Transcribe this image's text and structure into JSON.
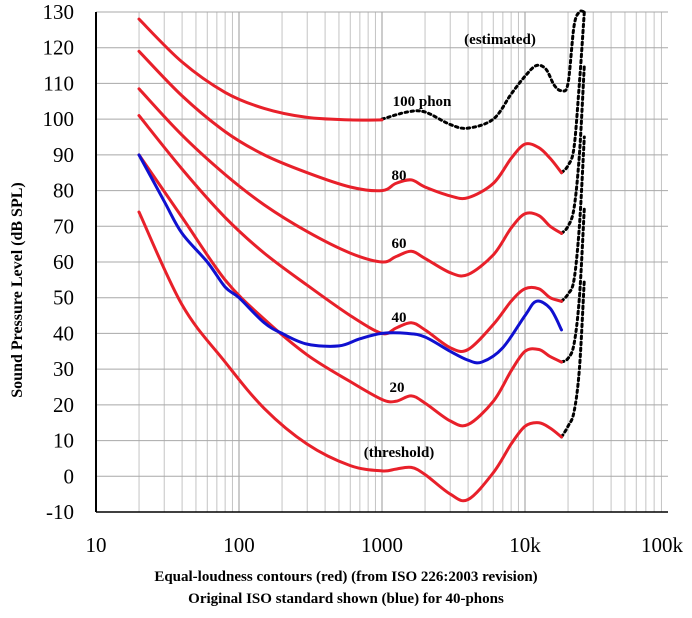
{
  "chart_data": {
    "type": "line",
    "xscale": "log",
    "xlim": [
      10,
      100000
    ],
    "ylim": [
      -10,
      130
    ],
    "grid": true,
    "x_ticks": [
      10,
      100,
      1000,
      10000,
      100000
    ],
    "x_tick_labels": [
      "10",
      "100",
      "1000",
      "10k",
      "100k"
    ],
    "y_ticks": [
      -10,
      0,
      10,
      20,
      30,
      40,
      50,
      60,
      70,
      80,
      90,
      100,
      110,
      120,
      130
    ],
    "y_tick_labels": [
      "-10",
      "0",
      "10",
      "20",
      "30",
      "40",
      "50",
      "60",
      "70",
      "80",
      "90",
      "100",
      "110",
      "120",
      "130"
    ],
    "ylabel": "Sound Pressure Level (dB SPL)",
    "caption_line1": "Equal-loudness contours (red) (from ISO 226:2003 revision)",
    "caption_line2": "Original ISO standard shown (blue) for 40-phons",
    "annotations": {
      "estimated": "(estimated)",
      "p100": "100 phon",
      "p80": "80",
      "p60": "60",
      "p40": "40",
      "p20": "20",
      "threshold": "(threshold)"
    },
    "colors": {
      "iso2003": "#e8202a",
      "original": "#1010d0",
      "estimated": "#000000"
    },
    "series": [
      {
        "group": "iso2003",
        "x": [
          20,
          40,
          80,
          150,
          300,
          600,
          1000
        ],
        "y": [
          128,
          116,
          107.5,
          103,
          100.5,
          99.8,
          99.8
        ]
      },
      {
        "group": "estimated",
        "x": [
          1000,
          1500,
          2000,
          3000,
          4000,
          6000,
          8000,
          10000,
          12000,
          14000,
          16000,
          18000,
          20000,
          22000,
          24000,
          26000
        ],
        "y": [
          100,
          102,
          102,
          98.5,
          97.5,
          100,
          107,
          112,
          115,
          114,
          109.5,
          108,
          110,
          126,
          132,
          132
        ]
      },
      {
        "group": "iso2003",
        "x": [
          20,
          40,
          80,
          150,
          300,
          600,
          1000,
          1250,
          1600,
          2000,
          3000,
          4000,
          6000,
          8000,
          10000,
          12500,
          15000,
          18000
        ],
        "y": [
          119,
          106.5,
          96.5,
          90,
          85,
          81,
          80,
          82,
          83,
          81,
          78.5,
          78,
          82,
          89,
          93,
          92,
          89,
          85
        ]
      },
      {
        "group": "iso2003",
        "x": [
          20,
          40,
          80,
          150,
          300,
          600,
          1000,
          1250,
          1600,
          2000,
          3000,
          4000,
          6000,
          8000,
          10000,
          12500,
          15000,
          18000
        ],
        "y": [
          108.5,
          95.5,
          84.5,
          76,
          68.5,
          62.5,
          60,
          61.5,
          63,
          61,
          57,
          56.5,
          62,
          69.5,
          73.5,
          73,
          70,
          68
        ]
      },
      {
        "group": "iso2003",
        "x": [
          20,
          40,
          80,
          150,
          300,
          600,
          1000,
          1250,
          1600,
          2000,
          3000,
          4000,
          6000,
          8000,
          10000,
          12500,
          15000,
          18000
        ],
        "y": [
          101,
          86,
          72.5,
          62.5,
          53.5,
          45,
          40,
          41.5,
          43,
          41,
          36,
          35.5,
          42.5,
          49,
          52.5,
          52.5,
          50,
          49
        ]
      },
      {
        "group": "iso2003",
        "x": [
          20,
          40,
          80,
          150,
          300,
          600,
          1000,
          1250,
          1600,
          2000,
          3000,
          4000,
          6000,
          8000,
          10000,
          12500,
          15000,
          18000
        ],
        "y": [
          90,
          72.5,
          55,
          44,
          34,
          26.5,
          21.5,
          21,
          22.5,
          20.5,
          15.5,
          14.5,
          21,
          29.5,
          35,
          35.5,
          33.5,
          32
        ]
      },
      {
        "group": "iso2003",
        "x": [
          20,
          40,
          80,
          150,
          300,
          600,
          1000,
          1250,
          1600,
          2000,
          3000,
          4000,
          6000,
          8000,
          10000,
          12500,
          15000,
          18000
        ],
        "y": [
          74,
          48,
          32,
          19,
          9,
          3,
          1.5,
          2,
          2.5,
          0.5,
          -5,
          -6.5,
          1,
          9,
          14,
          15,
          13.5,
          11
        ]
      },
      {
        "group": "estimated",
        "x": [
          18000,
          20000,
          22000,
          24000,
          26000
        ],
        "y": [
          11,
          14,
          18,
          30,
          55
        ]
      },
      {
        "group": "estimated",
        "x": [
          18000,
          20000,
          22000,
          24000,
          26000
        ],
        "y": [
          32,
          33,
          37,
          50,
          75
        ]
      },
      {
        "group": "estimated",
        "x": [
          18000,
          20000,
          22000,
          24000,
          26000
        ],
        "y": [
          49,
          51,
          55,
          70,
          95
        ]
      },
      {
        "group": "estimated",
        "x": [
          18000,
          20000,
          22000,
          24000,
          26000
        ],
        "y": [
          68,
          70,
          75,
          90,
          115
        ]
      },
      {
        "group": "estimated",
        "x": [
          18000,
          20000,
          22000,
          24000,
          26000
        ],
        "y": [
          85,
          87,
          92,
          110,
          132
        ]
      },
      {
        "group": "original",
        "x": [
          20,
          30,
          40,
          60,
          80,
          100,
          150,
          200,
          300,
          500,
          700,
          1000,
          1500,
          2000,
          3000,
          4000,
          5000,
          7000,
          10000,
          12000,
          15000,
          18000
        ],
        "y": [
          90,
          77,
          68,
          60,
          53,
          50,
          43,
          40,
          37,
          36.5,
          38.5,
          40,
          40,
          39,
          35,
          32.5,
          32,
          36,
          45,
          49,
          47,
          41
        ]
      }
    ]
  }
}
